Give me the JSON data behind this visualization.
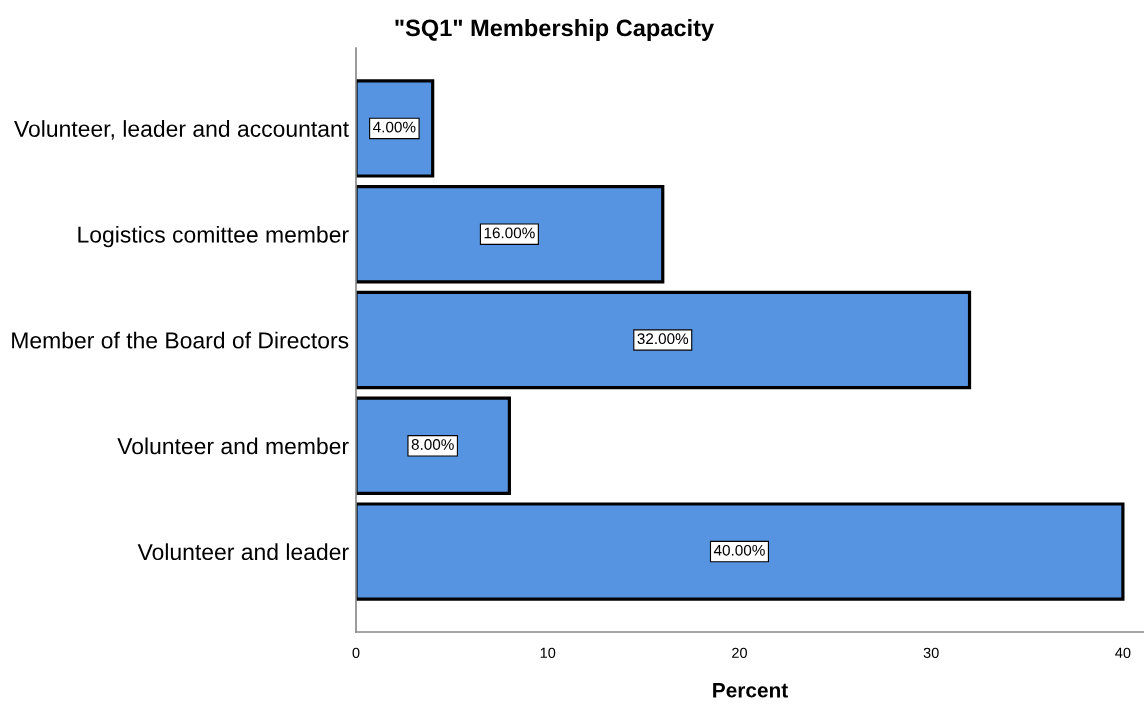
{
  "chart_data": {
    "type": "bar",
    "orientation": "horizontal",
    "title": "\"SQ1\" Membership Capacity",
    "xlabel": "Percent",
    "categories": [
      "Volunteer, leader and accountant",
      "Logistics comittee member",
      "Member of the Board of Directors",
      "Volunteer and member",
      "Volunteer and leader"
    ],
    "values": [
      4,
      16,
      32,
      8,
      40
    ],
    "value_labels": [
      "4.00%",
      "16.00%",
      "32.00%",
      "8.00%",
      "40.00%"
    ],
    "color": "#5694e1",
    "xlim": [
      0,
      41.1
    ],
    "xticks": [
      0,
      10,
      20,
      30,
      40
    ]
  }
}
